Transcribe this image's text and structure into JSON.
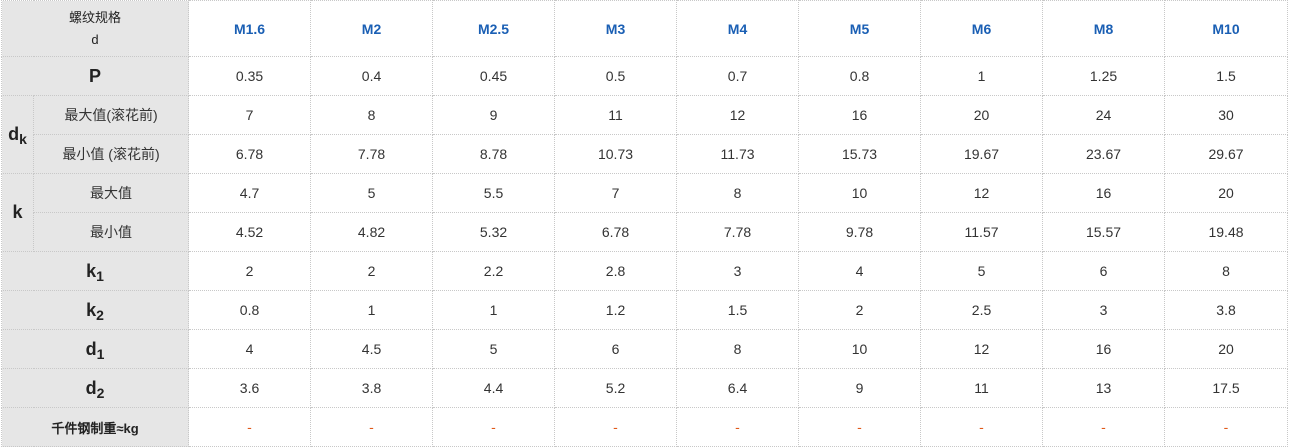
{
  "header": {
    "spec_label": "螺纹规格",
    "spec_symbol": "d",
    "sizes": [
      "M1.6",
      "M2",
      "M2.5",
      "M3",
      "M4",
      "M5",
      "M6",
      "M8",
      "M10"
    ]
  },
  "rows": {
    "P": {
      "label": "P",
      "values": [
        "0.35",
        "0.4",
        "0.45",
        "0.5",
        "0.7",
        "0.8",
        "1",
        "1.25",
        "1.5"
      ]
    },
    "dk": {
      "symbol": "d",
      "sub": "k",
      "max": {
        "label": "最大值(滚花前)",
        "values": [
          "7",
          "8",
          "9",
          "11",
          "12",
          "16",
          "20",
          "24",
          "30"
        ]
      },
      "min": {
        "label": "最小值 (滚花前)",
        "values": [
          "6.78",
          "7.78",
          "8.78",
          "10.73",
          "11.73",
          "15.73",
          "19.67",
          "23.67",
          "29.67"
        ]
      }
    },
    "k": {
      "symbol": "k",
      "max": {
        "label": "最大值",
        "values": [
          "4.7",
          "5",
          "5.5",
          "7",
          "8",
          "10",
          "12",
          "16",
          "20"
        ]
      },
      "min": {
        "label": "最小值",
        "values": [
          "4.52",
          "4.82",
          "5.32",
          "6.78",
          "7.78",
          "9.78",
          "11.57",
          "15.57",
          "19.48"
        ]
      }
    },
    "k1": {
      "symbol": "k",
      "sub": "1",
      "values": [
        "2",
        "2",
        "2.2",
        "2.8",
        "3",
        "4",
        "5",
        "6",
        "8"
      ]
    },
    "k2": {
      "symbol": "k",
      "sub": "2",
      "values": [
        "0.8",
        "1",
        "1",
        "1.2",
        "1.5",
        "2",
        "2.5",
        "3",
        "3.8"
      ]
    },
    "d1": {
      "symbol": "d",
      "sub": "1",
      "values": [
        "4",
        "4.5",
        "5",
        "6",
        "8",
        "10",
        "12",
        "16",
        "20"
      ]
    },
    "d2": {
      "symbol": "d",
      "sub": "2",
      "values": [
        "3.6",
        "3.8",
        "4.4",
        "5.2",
        "6.4",
        "9",
        "11",
        "13",
        "17.5"
      ]
    },
    "weight": {
      "label": "千件钢制重≈kg",
      "values": [
        "-",
        "-",
        "-",
        "-",
        "-",
        "-",
        "-",
        "-",
        "-"
      ]
    }
  },
  "colors": {
    "header_bg": "#e6e6e6",
    "size_text": "#1a5fb4",
    "dash": "#e05a1a"
  }
}
